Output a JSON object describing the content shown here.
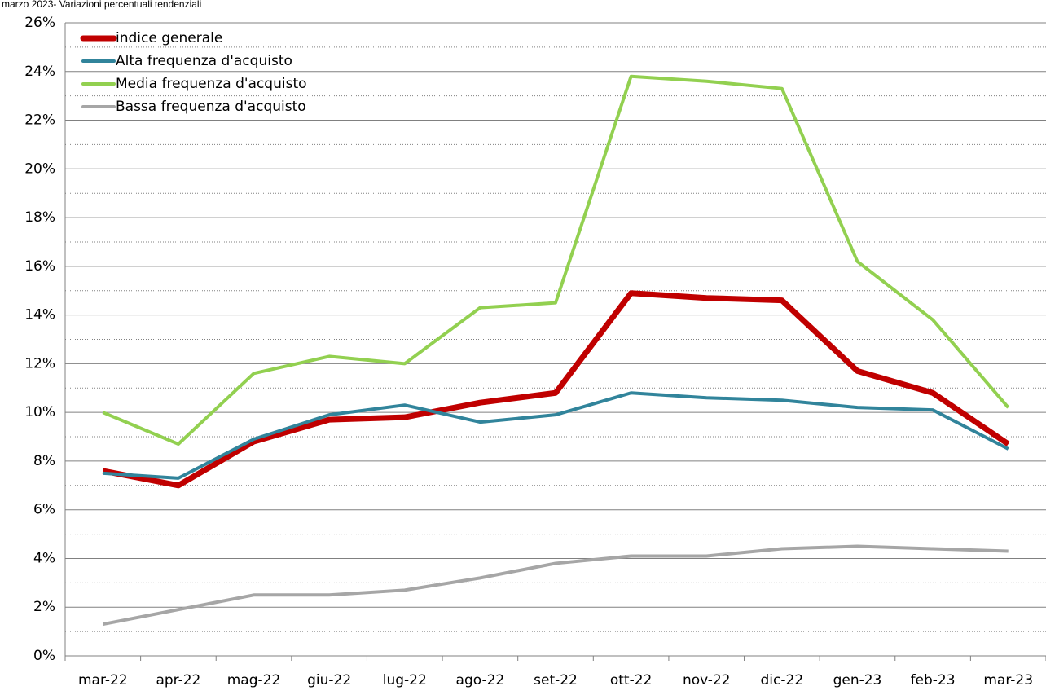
{
  "chart_data": {
    "type": "line",
    "title": "marzo 2023- Variazioni percentuali tendenziali",
    "categories": [
      "mar-22",
      "apr-22",
      "mag-22",
      "giu-22",
      "lug-22",
      "ago-22",
      "set-22",
      "ott-22",
      "nov-22",
      "dic-22",
      "gen-23",
      "feb-23",
      "mar-23"
    ],
    "series": [
      {
        "name": "indice generale",
        "color": "#c00000",
        "values": [
          7.6,
          7.0,
          8.8,
          9.7,
          9.8,
          10.4,
          10.8,
          14.9,
          14.7,
          14.6,
          11.7,
          10.8,
          8.7
        ]
      },
      {
        "name": "Alta frequenza d'acquisto",
        "color": "#31849b",
        "values": [
          7.5,
          7.3,
          8.9,
          9.9,
          10.3,
          9.6,
          9.9,
          10.8,
          10.6,
          10.5,
          10.2,
          10.1,
          8.5
        ]
      },
      {
        "name": "Media frequenza d'acquisto",
        "color": "#92d050",
        "values": [
          10.0,
          8.7,
          11.6,
          12.3,
          12.0,
          14.3,
          14.5,
          23.8,
          23.6,
          23.3,
          16.2,
          13.8,
          10.2
        ]
      },
      {
        "name": "Bassa frequenza d'acquisto",
        "color": "#a6a6a6",
        "values": [
          1.3,
          1.9,
          2.5,
          2.5,
          2.7,
          3.2,
          3.8,
          4.1,
          4.1,
          4.4,
          4.5,
          4.4,
          4.3
        ]
      }
    ],
    "ylim": [
      0,
      26
    ],
    "yticks": [
      {
        "value": 0,
        "label": "0%"
      },
      {
        "value": 2,
        "label": "2%"
      },
      {
        "value": 4,
        "label": "4%"
      },
      {
        "value": 6,
        "label": "6%"
      },
      {
        "value": 8,
        "label": "8%"
      },
      {
        "value": 10,
        "label": "10%"
      },
      {
        "value": 12,
        "label": "12%"
      },
      {
        "value": 14,
        "label": "14%"
      },
      {
        "value": 16,
        "label": "16%"
      },
      {
        "value": 18,
        "label": "18%"
      },
      {
        "value": 20,
        "label": "20%"
      },
      {
        "value": 22,
        "label": "22%"
      },
      {
        "value": 24,
        "label": "24%"
      },
      {
        "value": 26,
        "label": "26%"
      }
    ],
    "grid": true,
    "legend": "top-left"
  }
}
